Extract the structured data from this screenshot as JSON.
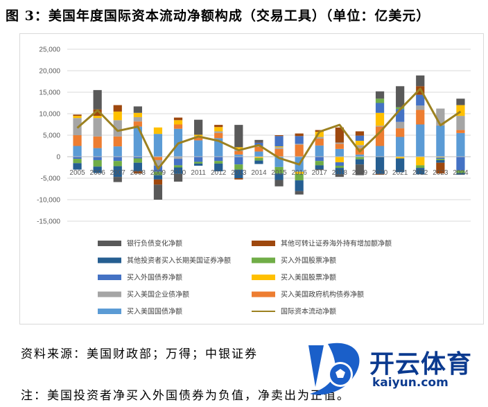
{
  "title": "图 3：美国年度国际资本流动净额构成（交易工具）（单位：亿美元）",
  "source": "资料来源：美国财政部；万得；中银证券",
  "note": "注：美国投资者净买入外国债券为负值，净卖出为正值。",
  "watermark": {
    "brand": "开云体育",
    "url": "kaiyun.com"
  },
  "chart_data": {
    "type": "bar",
    "stacked": true,
    "categories": [
      "2005",
      "2006",
      "2007",
      "2008",
      "2009",
      "2010",
      "2011",
      "2012",
      "2013",
      "2014",
      "2015",
      "2016",
      "2017",
      "2018",
      "2019",
      "2020",
      "2021",
      "2022",
      "2023",
      "2024"
    ],
    "ylim": [
      -15000,
      25000
    ],
    "yticks": [
      25000,
      20000,
      15000,
      10000,
      5000,
      0,
      -5000,
      -10000,
      -15000
    ],
    "ytick_labels": [
      "25,000",
      "20,000",
      "15,000",
      "10,000",
      "5,000",
      "0",
      "-5,000",
      "-10,000",
      "-15,000"
    ],
    "grid": true,
    "legend_position": "bottom",
    "series": [
      {
        "name": "买入美国国债净额",
        "color": "#5b9bd5",
        "values": [
          2500,
          2000,
          2400,
          7000,
          5300,
          6500,
          3800,
          4300,
          500,
          1200,
          -2400,
          -3500,
          2600,
          1800,
          500,
          2500,
          4600,
          7500,
          7300,
          5500
        ]
      },
      {
        "name": "买入美国政府机构债券净额",
        "color": "#ed7d31",
        "values": [
          2500,
          2700,
          2300,
          1200,
          -800,
          1000,
          800,
          1200,
          800,
          1100,
          1800,
          2800,
          1600,
          1200,
          1500,
          4500,
          2000,
          3400,
          100,
          700
        ]
      },
      {
        "name": "买入美国企业债净额",
        "color": "#a5a5a5",
        "values": [
          4000,
          4300,
          3800,
          1000,
          -1300,
          -500,
          200,
          400,
          500,
          200,
          400,
          200,
          400,
          300,
          700,
          200,
          1500,
          1000,
          3800,
          3300
        ]
      },
      {
        "name": "买入美国股票净额",
        "color": "#ffc000",
        "values": [
          500,
          500,
          2000,
          1000,
          1500,
          1000,
          300,
          1000,
          400,
          -300,
          200,
          -500,
          1200,
          -1300,
          1000,
          3000,
          -400,
          -2000,
          -200,
          2500
        ]
      },
      {
        "name": "买入外国债券净额",
        "color": "#4472c4",
        "values": [
          -500,
          -800,
          -1000,
          -400,
          -1400,
          -1500,
          -1200,
          -1000,
          -1800,
          800,
          2400,
          1800,
          -1000,
          -800,
          1200,
          2300,
          3000,
          2500,
          -300,
          -3200
        ]
      },
      {
        "name": "买入外国股票净额",
        "color": "#70ad47",
        "values": [
          -1000,
          -1500,
          -1200,
          -1000,
          -800,
          -500,
          -400,
          -600,
          -1200,
          -600,
          -1500,
          -1500,
          -1000,
          -500,
          -600,
          1000,
          400,
          -600,
          -300,
          -600
        ]
      },
      {
        "name": "其他投资者买入长期美国证券净额",
        "color": "#255e91",
        "values": [
          -1500,
          -1500,
          -2500,
          -2000,
          -1000,
          -1500,
          -500,
          -1800,
          -2000,
          -800,
          -1500,
          -2500,
          -900,
          -1500,
          -1200,
          -4000,
          -3200,
          -1500,
          -600,
          -400
        ]
      },
      {
        "name": "其他可转让证券海外持有增加额净额",
        "color": "#9e480e",
        "values": [
          300,
          1500,
          1500,
          -500,
          -1200,
          600,
          0,
          500,
          -300,
          100,
          200,
          600,
          400,
          3500,
          1000,
          -200,
          0,
          2000,
          -2500,
          0
        ]
      },
      {
        "name": "银行负债变化净额",
        "color": "#595959",
        "values": [
          0,
          4500,
          -1200,
          1500,
          -3500,
          -1800,
          3500,
          0,
          5200,
          500,
          -1500,
          -800,
          -200,
          -600,
          -2500,
          1700,
          4900,
          2500,
          0,
          1500
        ]
      }
    ],
    "line": {
      "name": "国际资本流动净额",
      "color": "#9c8120",
      "values": [
        6700,
        10800,
        6000,
        7000,
        -2800,
        3100,
        4700,
        3700,
        1500,
        2700,
        -300,
        -1800,
        5800,
        7400,
        1200,
        5700,
        11000,
        15800,
        7300,
        10500
      ]
    }
  }
}
